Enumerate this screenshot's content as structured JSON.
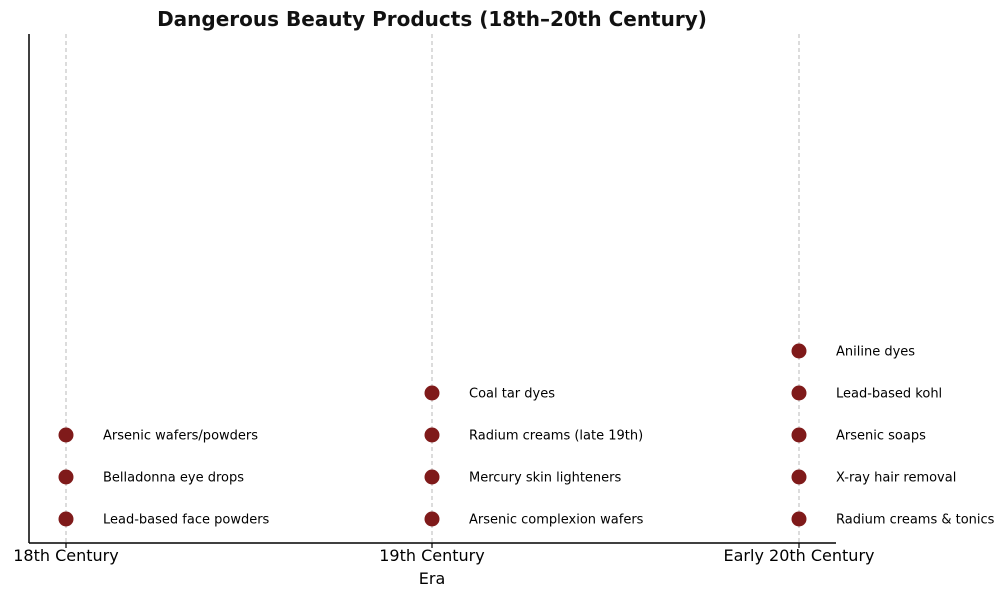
{
  "chart_data": {
    "type": "scatter",
    "title": "Dangerous Beauty Products (18th–20th Century)",
    "xlabel": "Era",
    "ylabel": "",
    "categories": [
      "18th Century",
      "19th Century",
      "Early 20th Century"
    ],
    "grid": "vertical dashed lines at each era",
    "marker_color": "#7f1a1a",
    "groups": [
      {
        "era": "18th Century",
        "items": [
          "Lead-based face powders",
          "Belladonna eye drops",
          "Arsenic wafers/powders"
        ]
      },
      {
        "era": "19th Century",
        "items": [
          "Arsenic complexion wafers",
          "Mercury skin lighteners",
          "Radium creams (late 19th)",
          "Coal tar dyes"
        ]
      },
      {
        "era": "Early 20th Century",
        "items": [
          "Radium creams & tonics",
          "X-ray hair removal",
          "Arsenic soaps",
          "Lead-based kohl",
          "Aniline dyes"
        ]
      }
    ]
  }
}
